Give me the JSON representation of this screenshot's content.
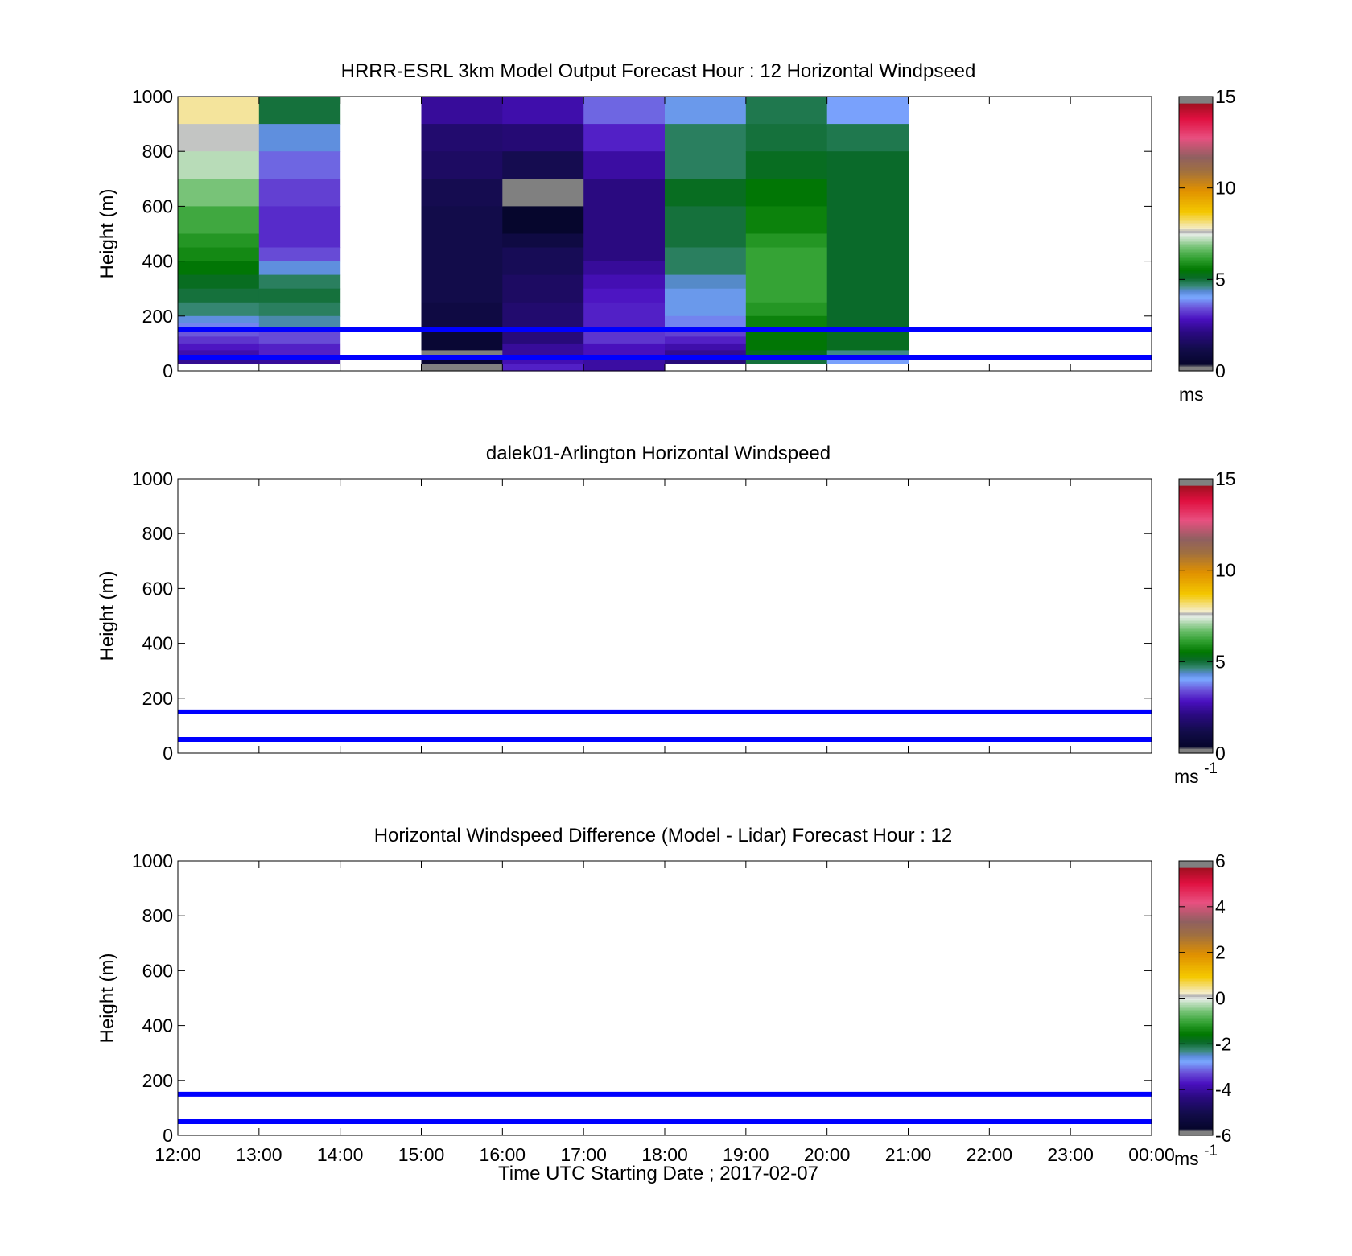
{
  "figure": {
    "xlabel": "Time UTC  Starting Date ; 2017-02-07",
    "x_tick_labels": [
      "12:00",
      "13:00",
      "14:00",
      "15:00",
      "16:00",
      "17:00",
      "18:00",
      "19:00",
      "20:00",
      "21:00",
      "22:00",
      "23:00",
      "00:00"
    ],
    "y_tick_labels": [
      "0",
      "200",
      "400",
      "600",
      "800",
      "1000"
    ]
  },
  "colors": {
    "reference_line": "#0000ff",
    "axes": "#000000",
    "background": "#ffffff"
  },
  "chart_data": [
    {
      "type": "heatmap",
      "title": "HRRR-ESRL 3km Model Output   Forecast Hour : 12 Horizontal Windpseed",
      "ylabel": "Height (m)",
      "xlim": [
        12,
        24
      ],
      "ylim": [
        0,
        1000
      ],
      "grid": false,
      "reference_lines_y": [
        150,
        50
      ],
      "colorbar": {
        "ticks": [
          "0",
          "5",
          "10",
          "15"
        ],
        "range": [
          0,
          15
        ],
        "unit": "ms",
        "unit_sup": ""
      },
      "value_unit": "m/s",
      "columns": [
        {
          "x_start": 12,
          "x_end": 13,
          "cells": [
            {
              "y0": 900,
              "y1": 1000,
              "value": 8.0
            },
            {
              "y0": 800,
              "y1": 900,
              "value": 7.6
            },
            {
              "y0": 700,
              "y1": 800,
              "value": 7.2
            },
            {
              "y0": 600,
              "y1": 700,
              "value": 6.8
            },
            {
              "y0": 500,
              "y1": 600,
              "value": 6.3
            },
            {
              "y0": 450,
              "y1": 500,
              "value": 6.0
            },
            {
              "y0": 400,
              "y1": 450,
              "value": 5.8
            },
            {
              "y0": 350,
              "y1": 400,
              "value": 5.5
            },
            {
              "y0": 300,
              "y1": 350,
              "value": 5.2
            },
            {
              "y0": 250,
              "y1": 300,
              "value": 5.0
            },
            {
              "y0": 200,
              "y1": 250,
              "value": 4.7
            },
            {
              "y0": 175,
              "y1": 200,
              "value": 4.3
            },
            {
              "y0": 150,
              "y1": 175,
              "value": 3.8
            },
            {
              "y0": 125,
              "y1": 150,
              "value": 3.5
            },
            {
              "y0": 100,
              "y1": 125,
              "value": 3.2
            },
            {
              "y0": 75,
              "y1": 100,
              "value": 2.9
            },
            {
              "y0": 50,
              "y1": 75,
              "value": 2.6
            },
            {
              "y0": 25,
              "y1": 50,
              "value": 2.3
            }
          ]
        },
        {
          "x_start": 13,
          "x_end": 14,
          "cells": [
            {
              "y0": 900,
              "y1": 1000,
              "value": 5.0
            },
            {
              "y0": 800,
              "y1": 900,
              "value": 4.3
            },
            {
              "y0": 700,
              "y1": 800,
              "value": 3.6
            },
            {
              "y0": 600,
              "y1": 700,
              "value": 3.3
            },
            {
              "y0": 450,
              "y1": 600,
              "value": 3.1
            },
            {
              "y0": 400,
              "y1": 450,
              "value": 3.4
            },
            {
              "y0": 350,
              "y1": 400,
              "value": 4.3
            },
            {
              "y0": 300,
              "y1": 350,
              "value": 4.8
            },
            {
              "y0": 250,
              "y1": 300,
              "value": 5.0
            },
            {
              "y0": 200,
              "y1": 250,
              "value": 4.8
            },
            {
              "y0": 150,
              "y1": 200,
              "value": 4.5
            },
            {
              "y0": 100,
              "y1": 150,
              "value": 3.4
            },
            {
              "y0": 50,
              "y1": 100,
              "value": 3.0
            },
            {
              "y0": 25,
              "y1": 50,
              "value": 2.4
            }
          ]
        },
        {
          "x_start": 15,
          "x_end": 16,
          "cells": [
            {
              "y0": 900,
              "y1": 1000,
              "value": 2.4
            },
            {
              "y0": 800,
              "y1": 900,
              "value": 1.8
            },
            {
              "y0": 700,
              "y1": 800,
              "value": 1.6
            },
            {
              "y0": 600,
              "y1": 700,
              "value": 1.3
            },
            {
              "y0": 250,
              "y1": 600,
              "value": 1.2
            },
            {
              "y0": 150,
              "y1": 250,
              "value": 1.0
            },
            {
              "y0": 75,
              "y1": 150,
              "value": 0.6
            },
            {
              "y0": 50,
              "y1": 75,
              "value": 0.0
            },
            {
              "y0": 25,
              "y1": 50,
              "value": 0.5
            },
            {
              "y0": 0,
              "y1": 25,
              "value": 0.3
            }
          ]
        },
        {
          "x_start": 16,
          "x_end": 17,
          "cells": [
            {
              "y0": 900,
              "y1": 1000,
              "value": 2.6
            },
            {
              "y0": 800,
              "y1": 900,
              "value": 1.9
            },
            {
              "y0": 700,
              "y1": 800,
              "value": 1.3
            },
            {
              "y0": 600,
              "y1": 700,
              "value": 0.0
            },
            {
              "y0": 500,
              "y1": 600,
              "value": 0.4
            },
            {
              "y0": 450,
              "y1": 500,
              "value": 1.0
            },
            {
              "y0": 350,
              "y1": 450,
              "value": 1.4
            },
            {
              "y0": 250,
              "y1": 350,
              "value": 1.6
            },
            {
              "y0": 150,
              "y1": 250,
              "value": 1.8
            },
            {
              "y0": 100,
              "y1": 150,
              "value": 2.0
            },
            {
              "y0": 50,
              "y1": 100,
              "value": 2.4
            },
            {
              "y0": 25,
              "y1": 50,
              "value": 2.7
            },
            {
              "y0": 0,
              "y1": 25,
              "value": 3.0
            }
          ]
        },
        {
          "x_start": 17,
          "x_end": 18,
          "cells": [
            {
              "y0": 900,
              "y1": 1000,
              "value": 3.6
            },
            {
              "y0": 800,
              "y1": 900,
              "value": 3.0
            },
            {
              "y0": 700,
              "y1": 800,
              "value": 2.5
            },
            {
              "y0": 400,
              "y1": 700,
              "value": 2.1
            },
            {
              "y0": 350,
              "y1": 400,
              "value": 2.4
            },
            {
              "y0": 300,
              "y1": 350,
              "value": 2.7
            },
            {
              "y0": 250,
              "y1": 300,
              "value": 2.9
            },
            {
              "y0": 150,
              "y1": 250,
              "value": 3.0
            },
            {
              "y0": 100,
              "y1": 150,
              "value": 3.2
            },
            {
              "y0": 50,
              "y1": 100,
              "value": 2.8
            },
            {
              "y0": 0,
              "y1": 50,
              "value": 2.5
            }
          ]
        },
        {
          "x_start": 18,
          "x_end": 19,
          "cells": [
            {
              "y0": 900,
              "y1": 1000,
              "value": 4.2
            },
            {
              "y0": 700,
              "y1": 900,
              "value": 4.8
            },
            {
              "y0": 600,
              "y1": 700,
              "value": 5.2
            },
            {
              "y0": 450,
              "y1": 600,
              "value": 5.0
            },
            {
              "y0": 350,
              "y1": 450,
              "value": 4.8
            },
            {
              "y0": 300,
              "y1": 350,
              "value": 4.4
            },
            {
              "y0": 200,
              "y1": 300,
              "value": 4.2
            },
            {
              "y0": 150,
              "y1": 200,
              "value": 3.8
            },
            {
              "y0": 125,
              "y1": 150,
              "value": 3.3
            },
            {
              "y0": 100,
              "y1": 125,
              "value": 3.0
            },
            {
              "y0": 75,
              "y1": 100,
              "value": 2.6
            },
            {
              "y0": 50,
              "y1": 75,
              "value": 2.3
            },
            {
              "y0": 25,
              "y1": 50,
              "value": 2.0
            }
          ]
        },
        {
          "x_start": 19,
          "x_end": 20,
          "cells": [
            {
              "y0": 900,
              "y1": 1000,
              "value": 4.9
            },
            {
              "y0": 800,
              "y1": 900,
              "value": 5.0
            },
            {
              "y0": 700,
              "y1": 800,
              "value": 5.2
            },
            {
              "y0": 600,
              "y1": 700,
              "value": 5.5
            },
            {
              "y0": 500,
              "y1": 600,
              "value": 5.7
            },
            {
              "y0": 450,
              "y1": 500,
              "value": 6.0
            },
            {
              "y0": 250,
              "y1": 450,
              "value": 6.2
            },
            {
              "y0": 200,
              "y1": 250,
              "value": 6.0
            },
            {
              "y0": 150,
              "y1": 200,
              "value": 5.7
            },
            {
              "y0": 75,
              "y1": 150,
              "value": 5.5
            },
            {
              "y0": 50,
              "y1": 75,
              "value": 5.2
            },
            {
              "y0": 25,
              "y1": 50,
              "value": 5.0
            }
          ]
        },
        {
          "x_start": 20,
          "x_end": 21,
          "cells": [
            {
              "y0": 900,
              "y1": 1000,
              "value": 4.0
            },
            {
              "y0": 800,
              "y1": 900,
              "value": 4.9
            },
            {
              "y0": 150,
              "y1": 800,
              "value": 5.1
            },
            {
              "y0": 75,
              "y1": 150,
              "value": 5.2
            },
            {
              "y0": 50,
              "y1": 75,
              "value": 4.6
            },
            {
              "y0": 25,
              "y1": 50,
              "value": 4.0
            }
          ]
        }
      ]
    },
    {
      "type": "heatmap",
      "title": "dalek01-Arlington  Horizontal Windspeed",
      "ylabel": "Height (m)",
      "xlim": [
        12,
        24
      ],
      "ylim": [
        0,
        1000
      ],
      "grid": false,
      "reference_lines_y": [
        150,
        50
      ],
      "colorbar": {
        "ticks": [
          "0",
          "5",
          "10",
          "15"
        ],
        "range": [
          0,
          15
        ],
        "unit": "ms",
        "unit_sup": "-1"
      },
      "value_unit": "m/s",
      "columns": []
    },
    {
      "type": "heatmap",
      "title": "Horizontal Windspeed Difference (Model - Lidar) Forecast Hour : 12",
      "ylabel": "Height (m)",
      "xlim": [
        12,
        24
      ],
      "ylim": [
        0,
        1000
      ],
      "grid": false,
      "reference_lines_y": [
        150,
        50
      ],
      "colorbar": {
        "ticks": [
          "-6",
          "-4",
          "-2",
          "0",
          "2",
          "4",
          "6"
        ],
        "range": [
          -6,
          6
        ],
        "unit": "ms",
        "unit_sup": "-1"
      },
      "value_unit": "m/s",
      "columns": []
    }
  ]
}
